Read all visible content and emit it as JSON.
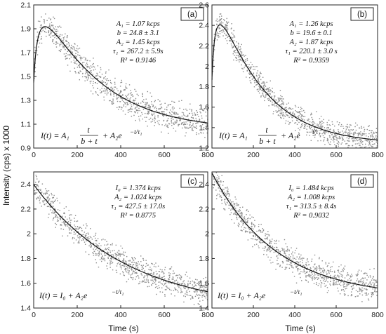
{
  "figure": {
    "ylabel": "Intensity (cps) x 1000",
    "xlabel": "Time (s)"
  },
  "chart_data": [
    {
      "id": "a",
      "type": "scatter",
      "panel_label": "(a)",
      "xlim": [
        0,
        800
      ],
      "ylim": [
        0.9,
        2.1
      ],
      "xticks": [
        0,
        200,
        400,
        600,
        800
      ],
      "yticks": [
        0.9,
        1.1,
        1.3,
        1.5,
        1.7,
        1.9,
        2.1
      ],
      "ytick_labels": [
        "0.9",
        "1.1",
        "1.3",
        "1.5",
        "1.7",
        "1.9",
        "2.1"
      ],
      "model": "hyperbolic_exp",
      "params": {
        "A1": 1.07,
        "b": 24.8,
        "A2": 1.45,
        "tau1": 267.2
      },
      "param_text": [
        "A₁ = 1.07 kcps",
        "b = 24.8 ± 3.1",
        "A₂ = 1.45 kcps",
        "τ₁ = 267.2 ± 5.9s",
        "R² = 0.9146"
      ],
      "noise_amplitude": 0.09,
      "n_points": 950,
      "formula": "hyperbolic"
    },
    {
      "id": "b",
      "type": "scatter",
      "panel_label": "(b)",
      "xlim": [
        0,
        800
      ],
      "ylim": [
        1.2,
        2.6
      ],
      "xticks": [
        0,
        200,
        400,
        600,
        800
      ],
      "yticks": [
        1.2,
        1.4,
        1.6,
        1.8,
        2.0,
        2.2,
        2.4,
        2.6
      ],
      "ytick_labels": [
        "1.2",
        "1.4",
        "1.6",
        "1.8",
        "2",
        "2.2",
        "2.4",
        "2.6"
      ],
      "model": "hyperbolic_exp",
      "params": {
        "A1": 1.26,
        "b": 19.6,
        "A2": 1.87,
        "tau1": 220.1
      },
      "param_text": [
        "A₁ = 1.26 kcps",
        "b = 19.6 ± 0.1",
        "A₂ = 1.87 kcps",
        "τ₁ = 220.1 ± 3.0 s",
        "R² = 0.9359"
      ],
      "noise_amplitude": 0.09,
      "n_points": 950,
      "formula": "hyperbolic"
    },
    {
      "id": "c",
      "type": "scatter",
      "panel_label": "(c)",
      "xlim": [
        0,
        800
      ],
      "ylim": [
        1.4,
        2.5
      ],
      "xticks": [
        0,
        200,
        400,
        600,
        800
      ],
      "yticks": [
        1.4,
        1.6,
        1.8,
        2.0,
        2.2,
        2.4
      ],
      "ytick_labels": [
        "1.4",
        "1.6",
        "1.8",
        "2",
        "2.2",
        "2.4"
      ],
      "model": "offset_exp",
      "params": {
        "I0": 1.374,
        "A2": 1.024,
        "tau1": 427.5
      },
      "param_text": [
        "I₀ = 1.374 kcps",
        "A₂ = 1.024 kcps",
        "τ₁ = 427.5 ± 17.0s",
        "R² = 0.8775"
      ],
      "noise_amplitude": 0.08,
      "n_points": 950,
      "formula": "offset"
    },
    {
      "id": "d",
      "type": "scatter",
      "panel_label": "(d)",
      "xlim": [
        0,
        800
      ],
      "ylim": [
        1.4,
        2.5
      ],
      "xticks": [
        0,
        200,
        400,
        600,
        800
      ],
      "yticks": [
        1.4,
        1.6,
        1.8,
        2.0,
        2.2,
        2.4
      ],
      "ytick_labels": [
        "1.4",
        "1.6",
        "1.8",
        "2",
        "2.2",
        "2.4"
      ],
      "model": "offset_exp",
      "params": {
        "I0": 1.484,
        "A2": 1.008,
        "tau1": 313.5
      },
      "param_text": [
        "I₀ = 1.484 kcps",
        "A₂ = 1.008 kcps",
        "τ₁ = 313.5 ± 8.4s",
        "R² = 0.9032"
      ],
      "noise_amplitude": 0.08,
      "n_points": 950,
      "formula": "offset"
    }
  ],
  "colors": {
    "points": "#8c8c8c",
    "fit": "#111111",
    "frame": "#222222"
  }
}
